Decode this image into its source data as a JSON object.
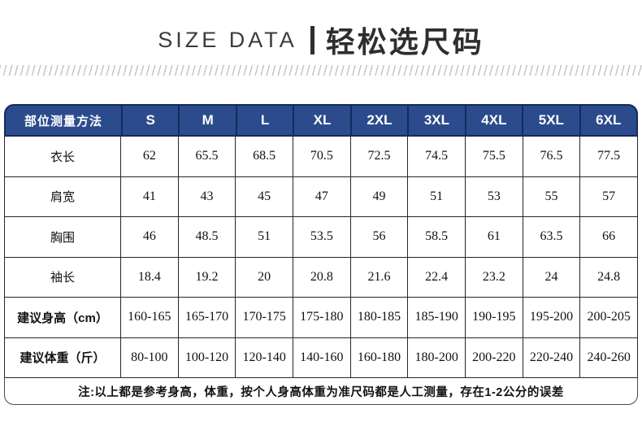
{
  "title": {
    "en": "SIZE DATA",
    "zh": "轻松选尺码"
  },
  "colors": {
    "header_bg": "#2b4b8c",
    "header_border": "#152a5e",
    "body_border": "#262626",
    "note_border": "#4a4a4a",
    "divider_color": "#c3c3c3",
    "title_color": "#2e2e2e",
    "text_color": "#121212"
  },
  "chart_data": {
    "type": "table",
    "title": "SIZE DATA | 轻松选尺码",
    "columns": [
      "部位测量方法",
      "S",
      "M",
      "L",
      "XL",
      "2XL",
      "3XL",
      "4XL",
      "5XL",
      "6XL"
    ],
    "rows": [
      [
        "衣长",
        "62",
        "65.5",
        "68.5",
        "70.5",
        "72.5",
        "74.5",
        "75.5",
        "76.5",
        "77.5"
      ],
      [
        "肩宽",
        "41",
        "43",
        "45",
        "47",
        "49",
        "51",
        "53",
        "55",
        "57"
      ],
      [
        "胸围",
        "46",
        "48.5",
        "51",
        "53.5",
        "56",
        "58.5",
        "61",
        "63.5",
        "66"
      ],
      [
        "袖长",
        "18.4",
        "19.2",
        "20",
        "20.8",
        "21.6",
        "22.4",
        "23.2",
        "24",
        "24.8"
      ],
      [
        "建议身高（cm）",
        "160-165",
        "165-170",
        "170-175",
        "175-180",
        "180-185",
        "185-190",
        "190-195",
        "195-200",
        "200-205"
      ],
      [
        "建议体重（斤）",
        "80-100",
        "100-120",
        "120-140",
        "140-160",
        "160-180",
        "180-200",
        "200-220",
        "220-240",
        "240-260"
      ]
    ],
    "note": "注:以上都是参考身高，体重，按个人身高体重为准尺码都是人工测量，存在1-2公分的误差"
  }
}
